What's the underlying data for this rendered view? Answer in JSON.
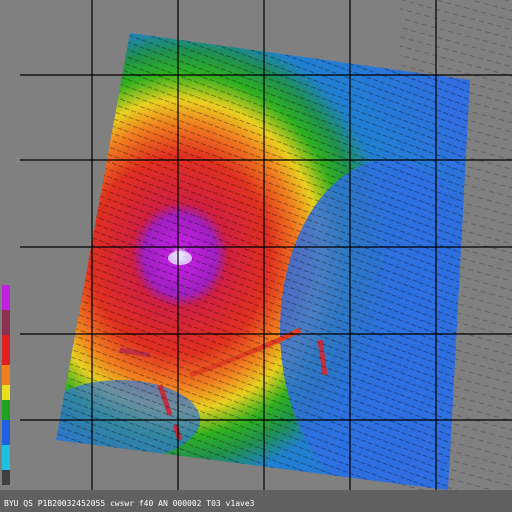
{
  "caption": "BYU QS P1B20032452055 cwswr f40 AN 000002 T03 v1ave3"
}
